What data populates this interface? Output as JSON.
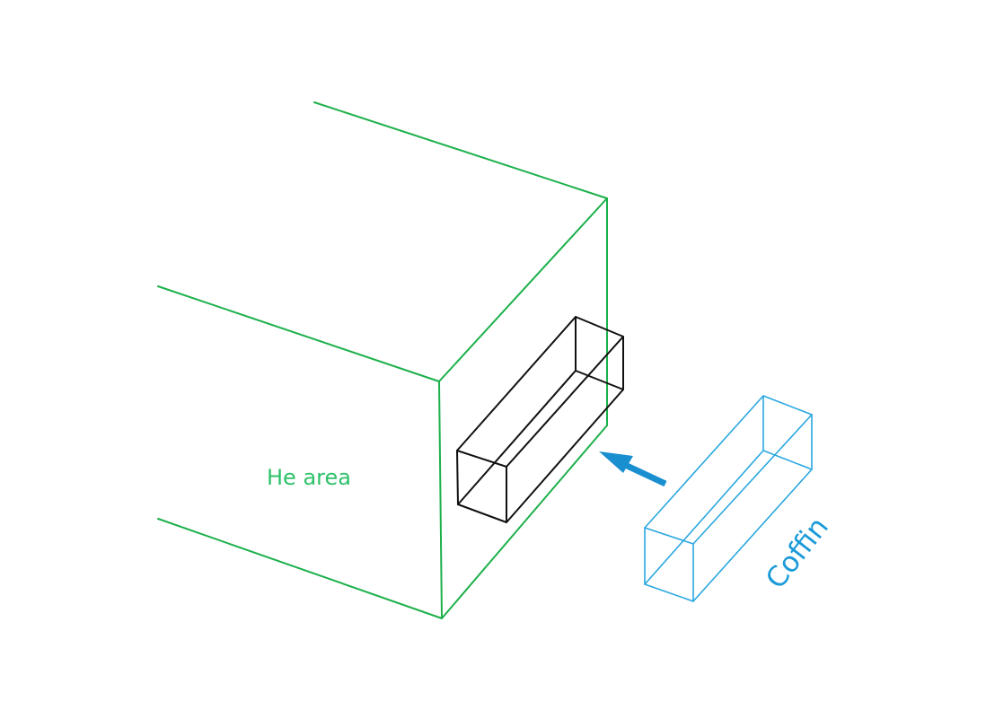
{
  "labels": {
    "he_area": "He area",
    "coffin": "Coffin"
  },
  "colors": {
    "he_area": "#1db04b",
    "he_area_text": "#2ec26a",
    "slot": "#111111",
    "coffin": "#2aa7df",
    "coffin_text": "#1a9ad8",
    "arrow": "#1a8fd0"
  },
  "icons": {
    "insertion_arrow": "arrow-up-left-icon"
  }
}
